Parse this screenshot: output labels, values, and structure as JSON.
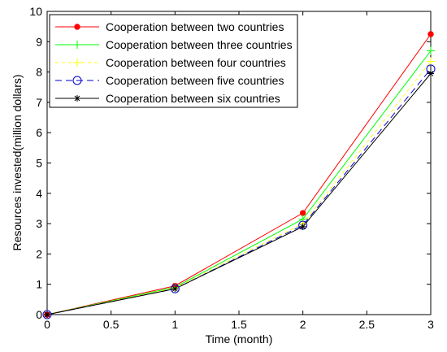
{
  "chart_data": {
    "type": "line",
    "title": "",
    "xlabel": "Time (month)",
    "ylabel": "Resources invested(million dollars)",
    "xlim": [
      0,
      3
    ],
    "ylim": [
      0,
      10
    ],
    "xticks": [
      0,
      0.5,
      1,
      1.5,
      2,
      2.5,
      3
    ],
    "xtick_labels": [
      "0",
      "0.5",
      "1",
      "1.5",
      "2",
      "2.5",
      "3"
    ],
    "yticks": [
      0,
      1,
      2,
      3,
      4,
      5,
      6,
      7,
      8,
      9,
      10
    ],
    "ytick_labels": [
      "0",
      "1",
      "2",
      "3",
      "4",
      "5",
      "6",
      "7",
      "8",
      "9",
      "10"
    ],
    "grid": false,
    "legend_position": "top-left",
    "x": [
      0,
      1,
      2,
      3
    ],
    "series": [
      {
        "name": "Cooperation between two countries",
        "values": [
          0,
          0.95,
          3.35,
          9.25
        ],
        "color": "#ff0000",
        "dash": "",
        "marker": "dot"
      },
      {
        "name": "Cooperation between three countries",
        "values": [
          0,
          0.9,
          3.15,
          8.7
        ],
        "color": "#00ff00",
        "dash": "",
        "marker": "plus"
      },
      {
        "name": "Cooperation between four countries",
        "values": [
          0,
          0.88,
          3.0,
          8.35
        ],
        "color": "#ffff00",
        "dash": "4 4",
        "marker": "plus"
      },
      {
        "name": "Cooperation between five countries",
        "values": [
          0,
          0.85,
          2.95,
          8.1
        ],
        "color": "#0000cc",
        "dash": "8 5",
        "marker": "circle"
      },
      {
        "name": "Cooperation between six countries",
        "values": [
          0,
          0.85,
          2.9,
          7.95
        ],
        "color": "#000000",
        "dash": "",
        "marker": "star"
      }
    ]
  }
}
